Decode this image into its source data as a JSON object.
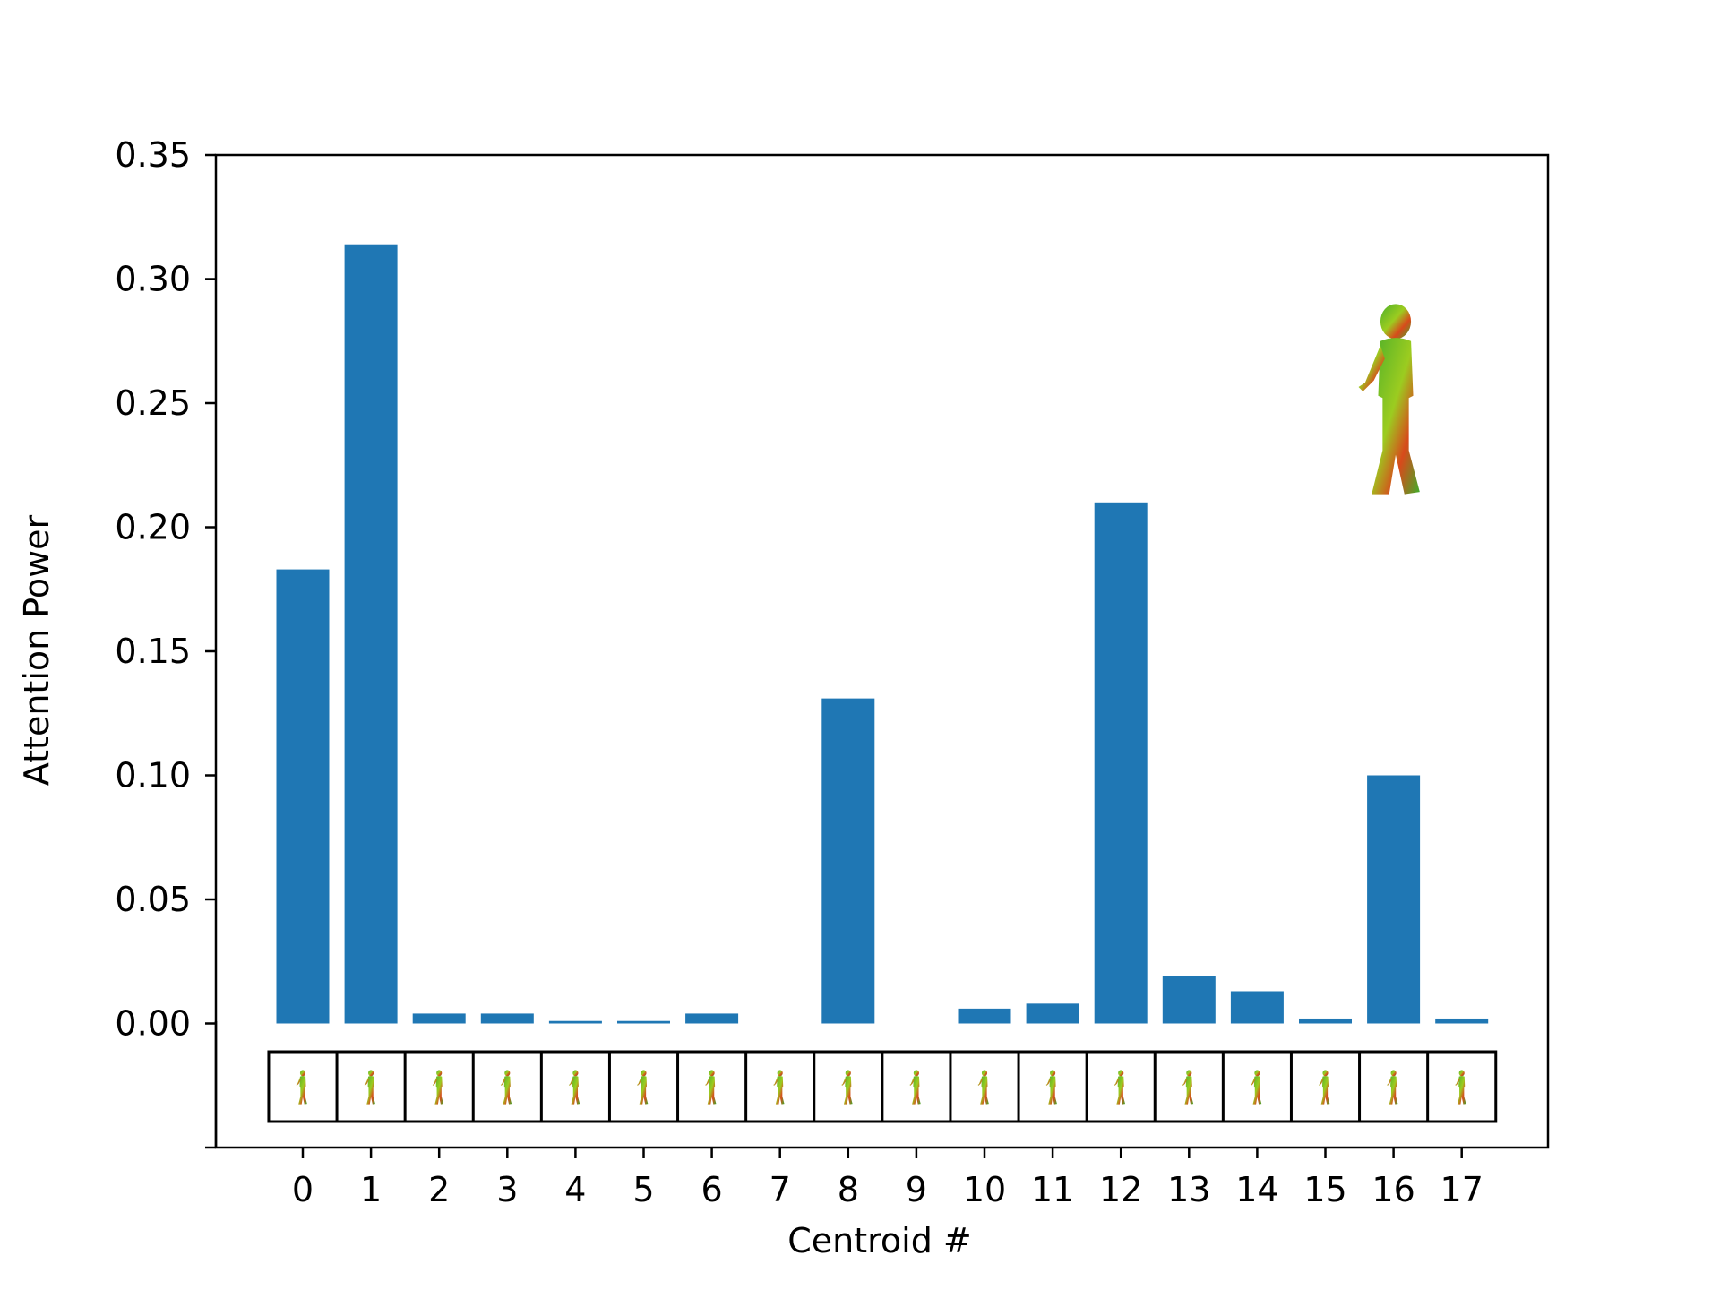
{
  "chart_data": {
    "type": "bar",
    "categories": [
      "0",
      "1",
      "2",
      "3",
      "4",
      "5",
      "6",
      "7",
      "8",
      "9",
      "10",
      "11",
      "12",
      "13",
      "14",
      "15",
      "16",
      "17"
    ],
    "values": [
      0.183,
      0.314,
      0.004,
      0.004,
      0.001,
      0.001,
      0.004,
      0.0,
      0.131,
      0.0,
      0.006,
      0.008,
      0.21,
      0.019,
      0.013,
      0.002,
      0.1,
      0.002
    ],
    "title": "",
    "xlabel": "Centroid #",
    "ylabel": "Attention Power",
    "ylim": [
      -0.05,
      0.35
    ],
    "yticks": [
      "0.00",
      "0.05",
      "0.10",
      "0.15",
      "0.20",
      "0.25",
      "0.30",
      "0.35"
    ],
    "bar_color": "#1f77b4",
    "grid": false,
    "legend": "none",
    "centroid_thumbnails": "walking-figure-icon",
    "query_figure": "walking-figure-icon"
  }
}
